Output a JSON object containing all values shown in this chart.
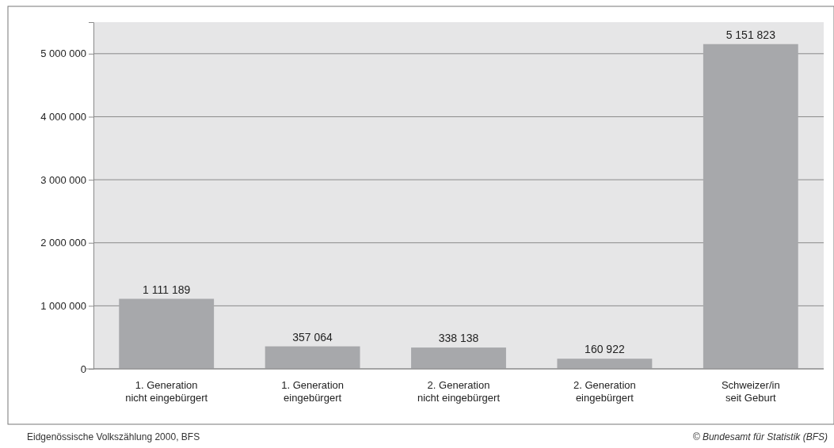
{
  "chart_data": {
    "type": "bar",
    "categories": [
      "1. Generation\nnicht eingebürgert",
      "1. Generation\neingebürgert",
      "2. Generation\nnicht eingebürgert",
      "2. Generation\neingebürgert",
      "Schweizer/in\nseit Geburt"
    ],
    "values": [
      1111189,
      357064,
      338138,
      160922,
      5151823
    ],
    "value_labels": [
      "1 111 189",
      "357 064",
      "338 138",
      "160 922",
      "5 151 823"
    ],
    "color": "#a7a8ab",
    "ylim": [
      0,
      5500000
    ],
    "yticks": [
      {
        "value": 0,
        "label": "0"
      },
      {
        "value": 1000000,
        "label": "1 000 000"
      },
      {
        "value": 2000000,
        "label": "2 000 000"
      },
      {
        "value": 3000000,
        "label": "3 000 000"
      },
      {
        "value": 4000000,
        "label": "4 000 000"
      },
      {
        "value": 5000000,
        "label": "5 000 000"
      }
    ],
    "grid": "y",
    "annotations": [
      "Eidgenössische Volkszählung 2000, BFS",
      "© Bundesamt für Statistik (BFS)"
    ]
  }
}
